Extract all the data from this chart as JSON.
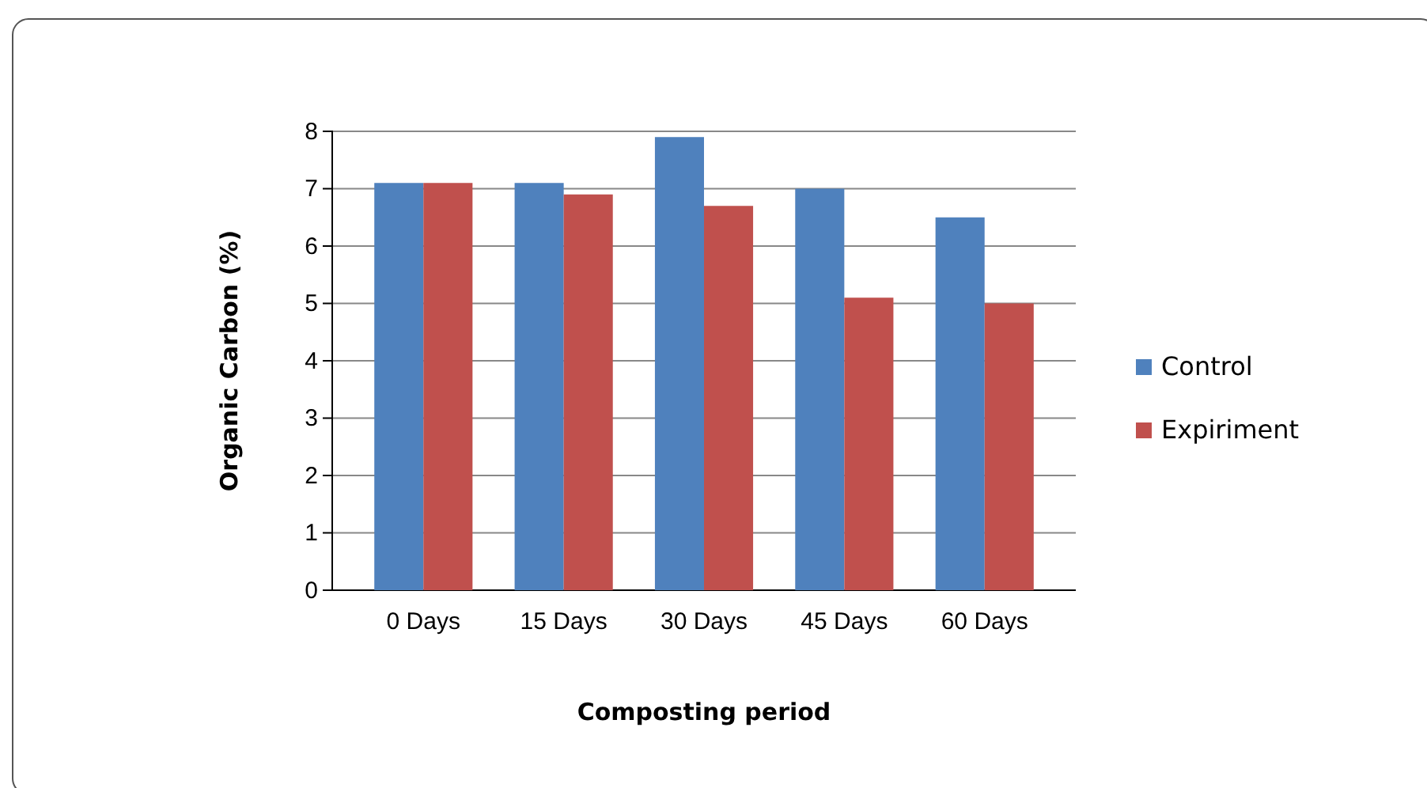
{
  "chart_data": {
    "type": "bar",
    "xlabel": "Composting period",
    "ylabel": "Organic Carbon (%)",
    "categories": [
      "0 Days",
      "15 Days",
      "30 Days",
      "45 Days",
      "60 Days"
    ],
    "series": [
      {
        "name": "Control",
        "color": "#4f81bd",
        "values": [
          7.1,
          7.1,
          7.9,
          7.0,
          6.5
        ]
      },
      {
        "name": "Expiriment",
        "color": "#c0504d",
        "values": [
          7.1,
          6.9,
          6.7,
          5.1,
          5.0
        ]
      }
    ],
    "ylim": [
      0,
      8
    ],
    "yticks": [
      0,
      1,
      2,
      3,
      4,
      5,
      6,
      7,
      8
    ],
    "grid": "y",
    "legend": "right"
  }
}
